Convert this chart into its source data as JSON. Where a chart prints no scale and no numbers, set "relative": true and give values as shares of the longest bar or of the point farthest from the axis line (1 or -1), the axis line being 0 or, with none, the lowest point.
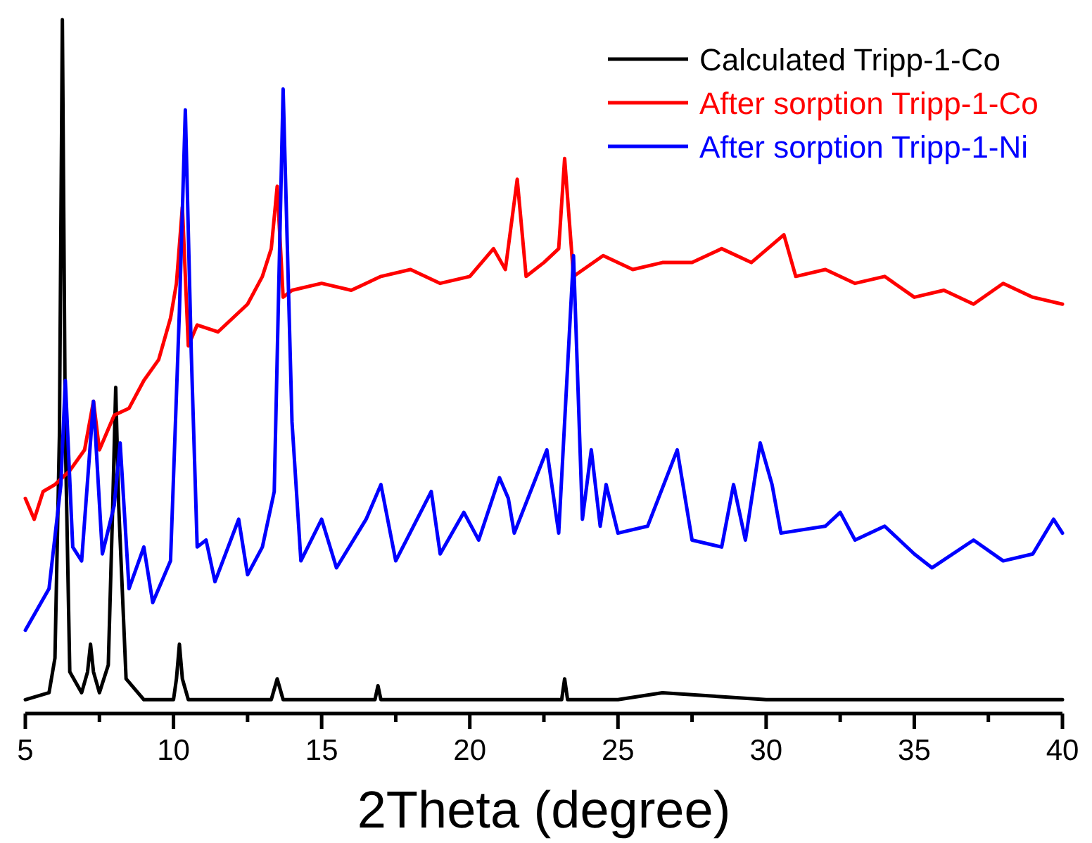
{
  "chart_data": {
    "type": "line",
    "xlabel": "2Theta (degree)",
    "relative": true,
    "xlim": [
      5,
      40
    ],
    "xticks": [
      5,
      {
        "value": 7.5,
        "label": null
      },
      10,
      {
        "value": 12.5,
        "label": null
      },
      15,
      {
        "value": 17.5,
        "label": null
      },
      20,
      {
        "value": 22.5,
        "label": null
      },
      25,
      {
        "value": 27.5,
        "label": null
      },
      30,
      {
        "value": 32.5,
        "label": null
      },
      35,
      {
        "value": 37.5,
        "label": null
      },
      40
    ],
    "tick_labels": "x",
    "legend": "top right",
    "grid": false,
    "line_style": "solid",
    "series": [
      {
        "name": "Calculated Tripp-1-Co",
        "color": "#000000",
        "x": [
          5,
          5.8,
          6.0,
          6.15,
          6.25,
          6.35,
          6.5,
          6.9,
          7.1,
          7.2,
          7.3,
          7.5,
          7.8,
          7.95,
          8.05,
          8.15,
          8.4,
          9,
          10,
          10.1,
          10.2,
          10.3,
          10.5,
          12,
          13.3,
          13.5,
          13.7,
          15,
          16.8,
          16.9,
          17.0,
          20,
          23.1,
          23.2,
          23.3,
          25,
          26.5,
          30,
          35,
          40
        ],
        "values": [
          0.02,
          0.03,
          0.08,
          0.4,
          1.0,
          0.4,
          0.06,
          0.03,
          0.06,
          0.1,
          0.06,
          0.03,
          0.07,
          0.3,
          0.47,
          0.3,
          0.05,
          0.02,
          0.02,
          0.05,
          0.1,
          0.05,
          0.02,
          0.02,
          0.02,
          0.05,
          0.02,
          0.02,
          0.02,
          0.04,
          0.02,
          0.02,
          0.02,
          0.05,
          0.02,
          0.02,
          0.03,
          0.02,
          0.02,
          0.02
        ]
      },
      {
        "name": "After sorption Tripp-1-Co",
        "color": "#ff0000",
        "x": [
          5,
          5.3,
          5.6,
          6,
          6.5,
          7,
          7.3,
          7.5,
          8,
          8.5,
          9,
          9.5,
          9.9,
          10.1,
          10.3,
          10.5,
          10.8,
          11.5,
          12,
          12.5,
          13,
          13.3,
          13.5,
          13.7,
          14,
          15,
          16,
          17,
          18,
          19,
          20,
          20.8,
          21.2,
          21.6,
          21.9,
          22.5,
          23,
          23.2,
          23.5,
          24.5,
          25.5,
          26.5,
          27.5,
          28.5,
          29.5,
          30.6,
          31,
          32,
          33,
          34,
          35,
          36,
          37,
          38,
          39,
          40
        ],
        "values": [
          0.31,
          0.28,
          0.32,
          0.33,
          0.35,
          0.38,
          0.45,
          0.38,
          0.43,
          0.44,
          0.48,
          0.51,
          0.57,
          0.62,
          0.73,
          0.53,
          0.56,
          0.55,
          0.57,
          0.59,
          0.63,
          0.67,
          0.76,
          0.6,
          0.61,
          0.62,
          0.61,
          0.63,
          0.64,
          0.62,
          0.63,
          0.67,
          0.64,
          0.77,
          0.63,
          0.65,
          0.67,
          0.8,
          0.63,
          0.66,
          0.64,
          0.65,
          0.65,
          0.67,
          0.65,
          0.69,
          0.63,
          0.64,
          0.62,
          0.63,
          0.6,
          0.61,
          0.59,
          0.62,
          0.6,
          0.59
        ]
      },
      {
        "name": "After sorption Tripp-1-Ni",
        "color": "#0000ff",
        "x": [
          5,
          5.8,
          6.2,
          6.35,
          6.6,
          6.9,
          7.3,
          7.6,
          8.0,
          8.2,
          8.5,
          9.0,
          9.3,
          9.9,
          10.2,
          10.4,
          10.6,
          10.8,
          11.1,
          11.4,
          12.2,
          12.5,
          13.0,
          13.4,
          13.7,
          14.0,
          14.3,
          15,
          15.5,
          16.5,
          17,
          17.5,
          18.7,
          19,
          19.8,
          20.3,
          21,
          21.3,
          21.5,
          22.6,
          23,
          23.5,
          23.8,
          24.1,
          24.4,
          24.6,
          25,
          26,
          27,
          27.5,
          28.5,
          28.9,
          29.3,
          29.8,
          30.2,
          30.5,
          32,
          32.5,
          33,
          34,
          35,
          35.6,
          37,
          38,
          39,
          39.7,
          40
        ],
        "values": [
          0.12,
          0.18,
          0.33,
          0.48,
          0.24,
          0.22,
          0.45,
          0.23,
          0.3,
          0.39,
          0.18,
          0.24,
          0.16,
          0.22,
          0.58,
          0.87,
          0.52,
          0.24,
          0.25,
          0.19,
          0.28,
          0.2,
          0.24,
          0.32,
          0.9,
          0.42,
          0.22,
          0.28,
          0.21,
          0.28,
          0.33,
          0.22,
          0.32,
          0.23,
          0.29,
          0.25,
          0.34,
          0.31,
          0.26,
          0.38,
          0.26,
          0.66,
          0.28,
          0.38,
          0.27,
          0.33,
          0.26,
          0.27,
          0.38,
          0.25,
          0.24,
          0.33,
          0.25,
          0.39,
          0.33,
          0.26,
          0.27,
          0.29,
          0.25,
          0.27,
          0.23,
          0.21,
          0.25,
          0.22,
          0.23,
          0.28,
          0.26
        ]
      }
    ]
  }
}
